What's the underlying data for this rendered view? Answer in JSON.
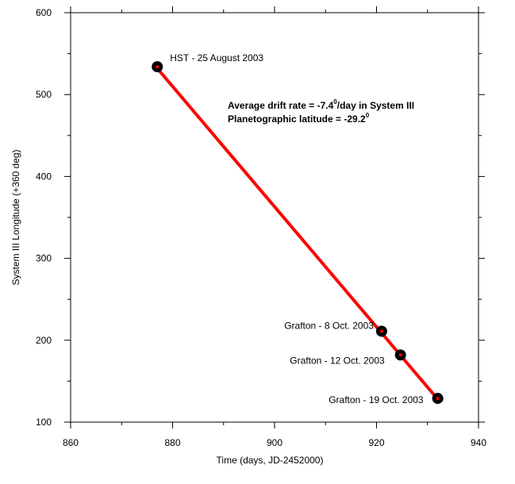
{
  "chart_data": {
    "type": "scatter",
    "xlabel": "Time (days, JD-2452000)",
    "ylabel": "System III Longitude (+360 deg)",
    "xlim": [
      860,
      940
    ],
    "ylim": [
      100,
      600
    ],
    "xticks": [
      860,
      880,
      900,
      920,
      940
    ],
    "yticks": [
      100,
      200,
      300,
      400,
      500,
      600
    ],
    "grid": false,
    "points": [
      {
        "x": 877,
        "y": 534,
        "label": "HST - 25 August 2003"
      },
      {
        "x": 921,
        "y": 211,
        "label": "Grafton - 8 Oct. 2003"
      },
      {
        "x": 924.7,
        "y": 182,
        "label": "Grafton - 12 Oct. 2003"
      },
      {
        "x": 932,
        "y": 129,
        "label": "Grafton - 19 Oct. 2003"
      }
    ],
    "fit_line": {
      "x": [
        877,
        932
      ],
      "y": [
        532,
        128
      ],
      "color": "#ff0000"
    },
    "annotations": {
      "line1_prefix": "Average drift rate = -7.4",
      "line1_sup": "0",
      "line1_suffix": "/day in System III",
      "line2_prefix": "Planetographic latitude = -29.2",
      "line2_sup": "0"
    },
    "colors": {
      "points": "#000000",
      "fit": "#ff0000",
      "axes": "#000000"
    }
  }
}
